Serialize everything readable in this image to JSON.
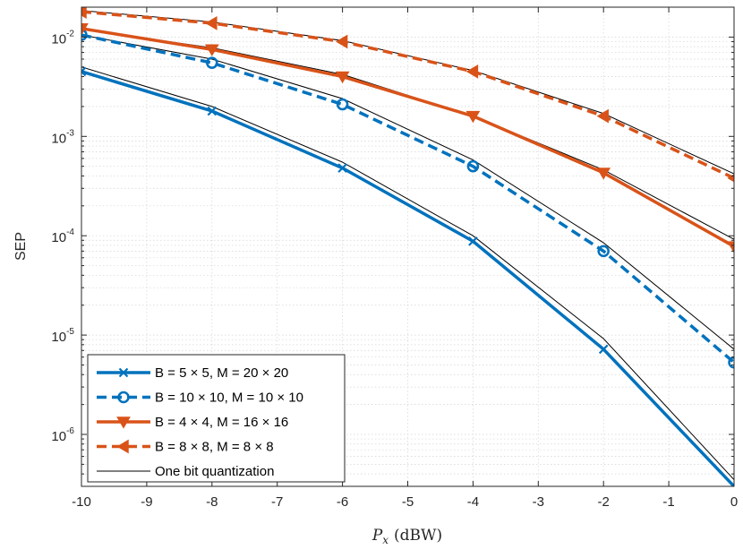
{
  "chart_data": {
    "type": "line",
    "title": "",
    "xlabel": {
      "var": "P",
      "sub": "x",
      "unit": "(dBW)"
    },
    "ylabel": "SEP",
    "yscale": "log",
    "xlim": [
      -10,
      0
    ],
    "ylim": [
      3e-07,
      0.02
    ],
    "grid": true,
    "x_ticks": [
      -10,
      -9,
      -8,
      -7,
      -6,
      -5,
      -4,
      -3,
      -2,
      -1,
      0
    ],
    "x_tick_labels": [
      "-10",
      "-9",
      "-8",
      "-7",
      "-6",
      "-5",
      "-4",
      "-3",
      "-2",
      "-1",
      "0"
    ],
    "y_ticks": [
      {
        "value": 0.01,
        "base": "10",
        "exp": "-2"
      },
      {
        "value": 0.001,
        "base": "10",
        "exp": "-3"
      },
      {
        "value": 0.0001,
        "base": "10",
        "exp": "-4"
      },
      {
        "value": 1e-05,
        "base": "10",
        "exp": "-5"
      },
      {
        "value": 1e-06,
        "base": "10",
        "exp": "-6"
      }
    ],
    "legend_position": "bottom-left",
    "series": [
      {
        "name": "B = 5 × 5, M = 20 × 20",
        "color": "#0072BD",
        "dash": "solid",
        "marker": "x",
        "x": [
          -10,
          -8,
          -6,
          -4,
          -2,
          0
        ],
        "y": [
          0.0045,
          0.0018,
          0.00048,
          8.8e-05,
          7.2e-06,
          3e-07
        ]
      },
      {
        "name": "B = 10 × 10, M = 10 × 10",
        "color": "#0072BD",
        "dash": "dashed",
        "marker": "circle",
        "x": [
          -10,
          -8,
          -6,
          -4,
          -2,
          0
        ],
        "y": [
          0.0105,
          0.0055,
          0.0021,
          0.0005,
          7e-05,
          5.3e-06
        ]
      },
      {
        "name": "B = 4 × 4, M = 16 × 16",
        "color": "#D95319",
        "dash": "solid",
        "marker": "triangle-down",
        "x": [
          -10,
          -8,
          -6,
          -4,
          -2,
          0
        ],
        "y": [
          0.0122,
          0.0075,
          0.004,
          0.0016,
          0.00043,
          7.8e-05
        ]
      },
      {
        "name": "B = 8 × 8, M = 8 × 8",
        "color": "#D95319",
        "dash": "dashed",
        "marker": "triangle-left",
        "x": [
          -10,
          -8,
          -6,
          -4,
          -2,
          0
        ],
        "y": [
          0.018,
          0.0138,
          0.009,
          0.0045,
          0.0016,
          0.00038
        ]
      },
      {
        "name": "One bit quantization",
        "color": "#000000",
        "dash": "solid",
        "marker": "none",
        "reference": true,
        "curves": [
          {
            "x": [
              -10,
              -8,
              -6,
              -4,
              -2,
              0
            ],
            "y": [
              0.005,
              0.002,
              0.00055,
              0.0001,
              9.2e-06,
              3.5e-07
            ]
          },
          {
            "x": [
              -10,
              -8,
              -6,
              -4,
              -2,
              0
            ],
            "y": [
              0.0105,
              0.006,
              0.0024,
              0.00058,
              8.5e-05,
              7.2e-06
            ]
          },
          {
            "x": [
              -10,
              -8,
              -6,
              -4,
              -2,
              0
            ],
            "y": [
              0.012,
              0.0078,
              0.0042,
              0.0016,
              0.00046,
              9.2e-05
            ]
          },
          {
            "x": [
              -10,
              -8,
              -6,
              -4,
              -2,
              0
            ],
            "y": [
              0.0185,
              0.0142,
              0.0092,
              0.0046,
              0.0017,
              0.00042
            ]
          }
        ]
      }
    ]
  }
}
